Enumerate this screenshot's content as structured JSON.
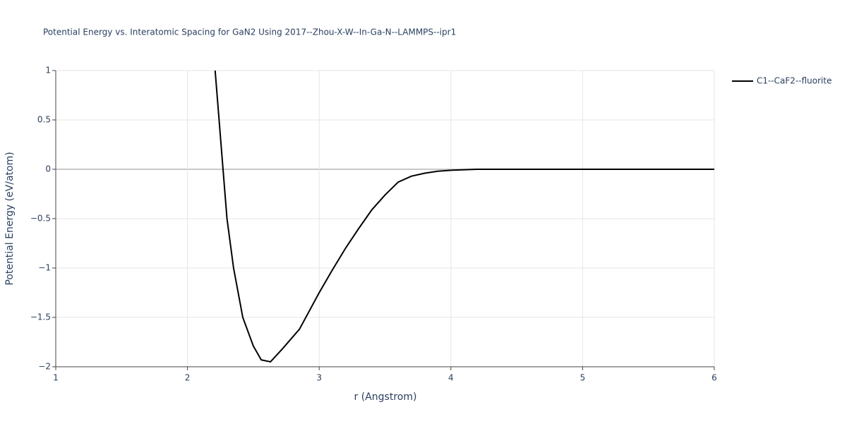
{
  "chart_data": {
    "type": "line",
    "title": "Potential Energy vs. Interatomic Spacing for GaN2 Using 2017--Zhou-X-W--In-Ga-N--LAMMPS--ipr1",
    "x_label": "r (Angstrom)",
    "y_label": "Potential Energy (eV/atom)",
    "x": [
      2.21,
      2.24,
      2.27,
      2.3,
      2.35,
      2.42,
      2.5,
      2.56,
      2.63,
      2.72,
      2.85,
      3.0,
      3.1,
      3.2,
      3.3,
      3.4,
      3.5,
      3.6,
      3.7,
      3.8,
      3.9,
      4.0,
      4.2,
      4.5,
      5.0,
      5.5,
      6.0
    ],
    "series": [
      {
        "name": "C1--CaF2--fluorite",
        "color": "#000000",
        "values": [
          1.0,
          0.5,
          0,
          -0.5,
          -1.0,
          -1.5,
          -1.79,
          -1.93,
          -1.95,
          -1.82,
          -1.62,
          -1.25,
          -1.02,
          -0.8,
          -0.6,
          -0.41,
          -0.26,
          -0.13,
          -0.07,
          -0.04,
          -0.02,
          -0.01,
          0,
          0,
          0,
          0,
          0
        ]
      }
    ],
    "xlim": [
      1,
      6
    ],
    "xticks": [
      1,
      2,
      3,
      4,
      5,
      6
    ],
    "ylim": [
      -2,
      1
    ],
    "yticks": [
      {
        "value": -2,
        "label": "−2"
      },
      {
        "value": -1.5,
        "label": "−1.5"
      },
      {
        "value": -1,
        "label": "−1"
      },
      {
        "value": -0.5,
        "label": "−0.5"
      },
      0,
      0.5,
      1
    ],
    "grid": true,
    "legend": "right"
  }
}
